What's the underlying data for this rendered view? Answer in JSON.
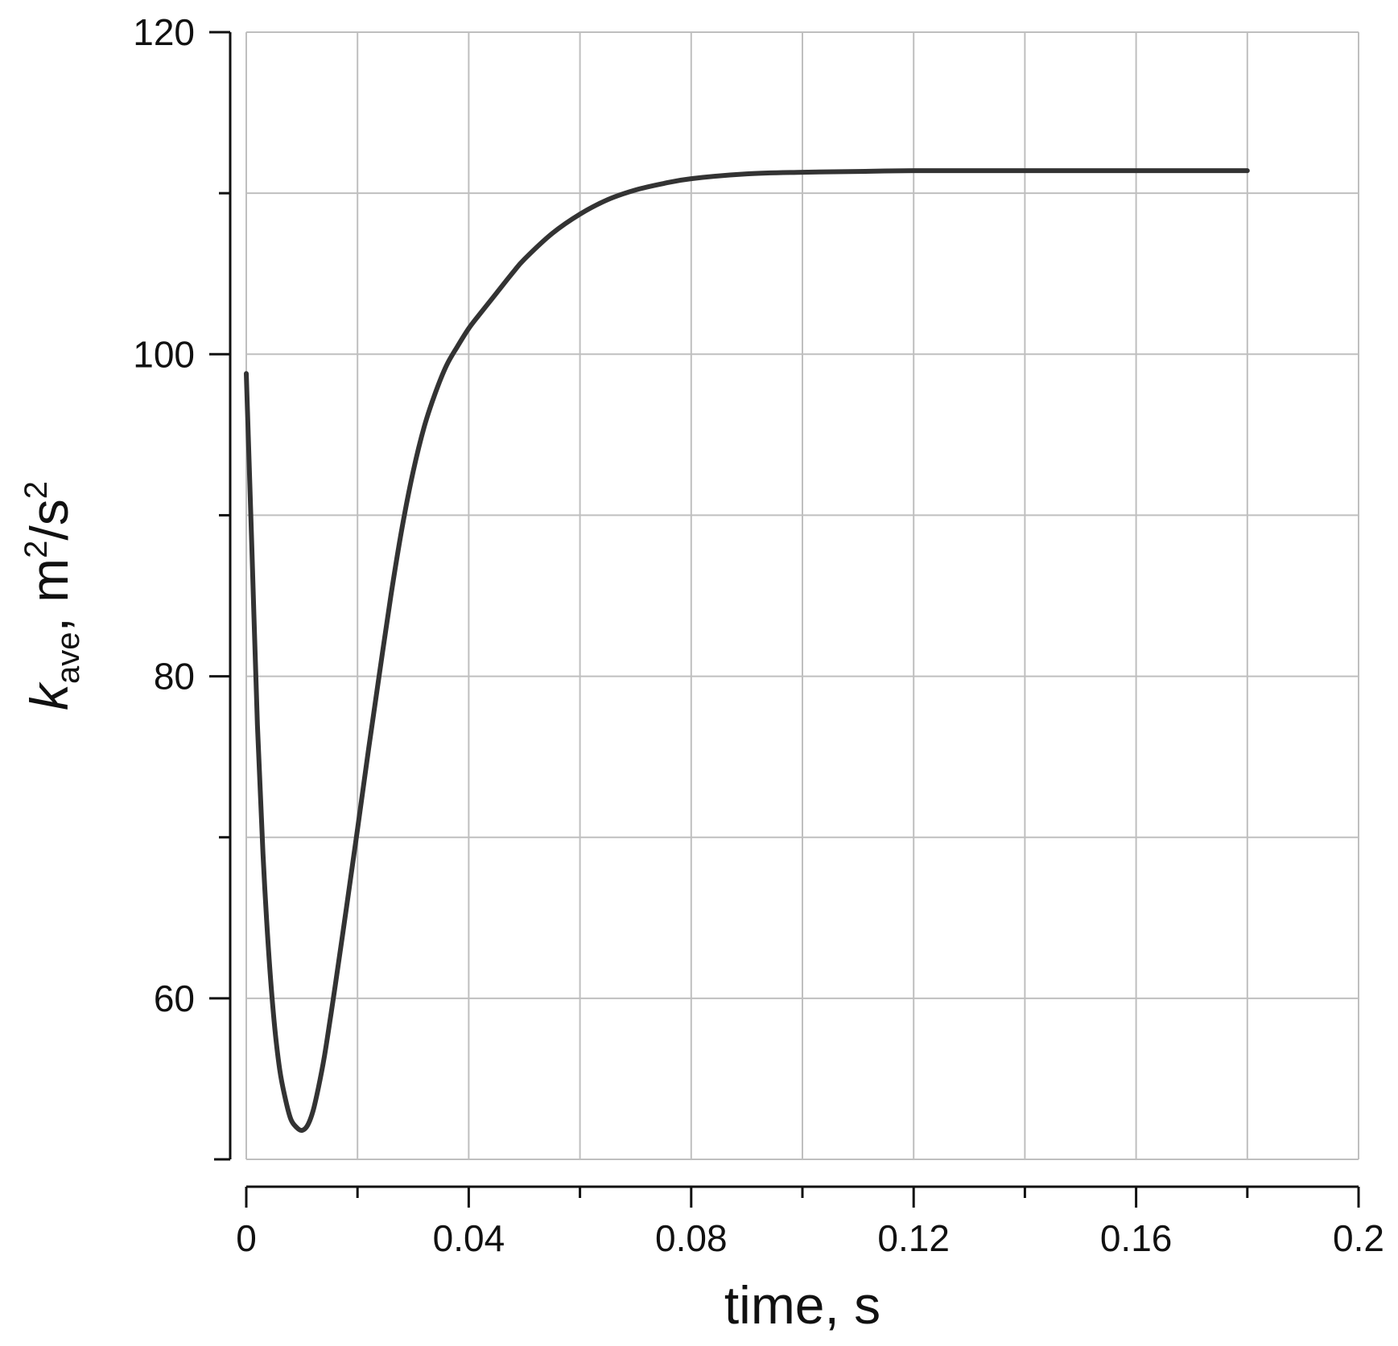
{
  "chart_data": {
    "type": "line",
    "title": "",
    "xlabel": "time, s",
    "ylabel": {
      "symbol": "k",
      "subscript": "ave",
      "separator": ", ",
      "unit_base": "m",
      "unit_base_sup": "2",
      "unit_slash": "/s",
      "unit_slash_sup": "2"
    },
    "xlim": [
      0,
      0.2
    ],
    "ylim": [
      50,
      120
    ],
    "x_tick_labels": [
      "0",
      "0.04",
      "0.08",
      "0.12",
      "0.16",
      "0.2"
    ],
    "y_tick_labels": [
      "60",
      "80",
      "100",
      "120"
    ],
    "x_major_ticks": [
      0,
      0.04,
      0.08,
      0.12,
      0.16,
      0.2
    ],
    "x_minor_ticks": [
      0.02,
      0.06,
      0.1,
      0.14,
      0.18
    ],
    "y_major_ticks": [
      60,
      80,
      100,
      120
    ],
    "y_minor_ticks": [
      70,
      90,
      110
    ],
    "grid": true,
    "line_color": "#333333",
    "grid_color": "#bfbfbf",
    "series": [
      {
        "x": [
          0,
          0.001,
          0.002,
          0.003,
          0.004,
          0.005,
          0.006,
          0.007,
          0.008,
          0.009,
          0.01,
          0.011,
          0.012,
          0.013,
          0.014,
          0.015,
          0.016,
          0.018,
          0.02,
          0.022,
          0.024,
          0.026,
          0.028,
          0.03,
          0.032,
          0.034,
          0.036,
          0.038,
          0.04,
          0.042,
          0.045,
          0.048,
          0.05,
          0.055,
          0.06,
          0.065,
          0.07,
          0.075,
          0.08,
          0.09,
          0.1,
          0.11,
          0.12,
          0.14,
          0.16,
          0.18
        ],
        "y": [
          98.8,
          88,
          77,
          69,
          63,
          58.6,
          55.6,
          53.8,
          52.5,
          52,
          51.8,
          52.1,
          53,
          54.5,
          56.3,
          58.5,
          60.8,
          65.6,
          70.5,
          75.5,
          80.3,
          85,
          89.2,
          92.7,
          95.5,
          97.6,
          99.3,
          100.5,
          101.6,
          102.5,
          103.8,
          105.1,
          105.9,
          107.5,
          108.7,
          109.6,
          110.2,
          110.6,
          110.9,
          111.2,
          111.3,
          111.35,
          111.4,
          111.4,
          111.4,
          111.4
        ]
      }
    ]
  }
}
